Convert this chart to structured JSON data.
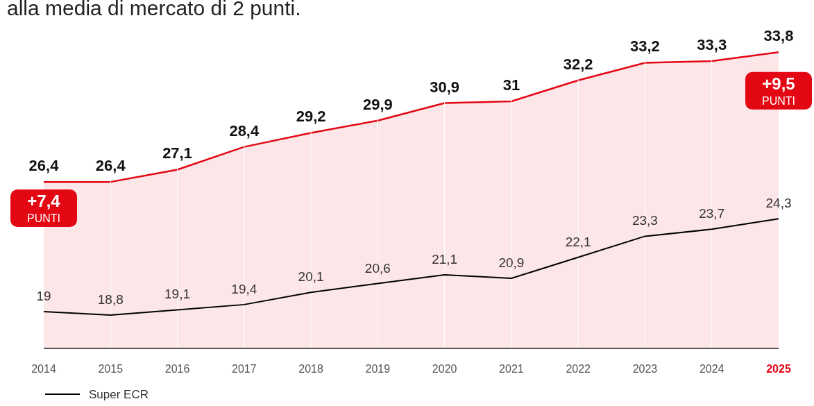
{
  "chart_data": {
    "type": "line",
    "title": "alla media di mercato di 2 punti.",
    "categories": [
      "2014",
      "2015",
      "2016",
      "2017",
      "2018",
      "2019",
      "2020",
      "2021",
      "2022",
      "2023",
      "2024",
      "2025"
    ],
    "series": [
      {
        "name": "Super ECR",
        "color": "#000000",
        "values": [
          19,
          18.8,
          19.1,
          19.4,
          20.1,
          20.6,
          21.1,
          20.9,
          22.1,
          23.3,
          23.7,
          24.3
        ],
        "value_labels": [
          "19",
          "18,8",
          "19,1",
          "19,4",
          "20,1",
          "20,6",
          "21,1",
          "20,9",
          "22,1",
          "23,3",
          "23,7",
          "24,3"
        ]
      },
      {
        "color": "#e30613",
        "type": "area",
        "values": [
          26.4,
          26.4,
          27.1,
          28.4,
          29.2,
          29.9,
          30.9,
          31,
          32.2,
          33.2,
          33.3,
          33.8
        ],
        "value_labels": [
          "26,4",
          "26,4",
          "27,1",
          "28,4",
          "29,2",
          "29,9",
          "30,9",
          "31",
          "32,2",
          "33,2",
          "33,3",
          "33,8"
        ]
      }
    ],
    "annotations": [
      {
        "text": "+7,4 PUNTI",
        "x": "2014",
        "y": 24.9
      },
      {
        "text": "+9,5 PUNTI",
        "x": "2025",
        "y": 31.6
      }
    ],
    "ylim": [
      16.9,
      35
    ],
    "tick_labels": "x",
    "grid": "x",
    "legend": "bottom left"
  }
}
